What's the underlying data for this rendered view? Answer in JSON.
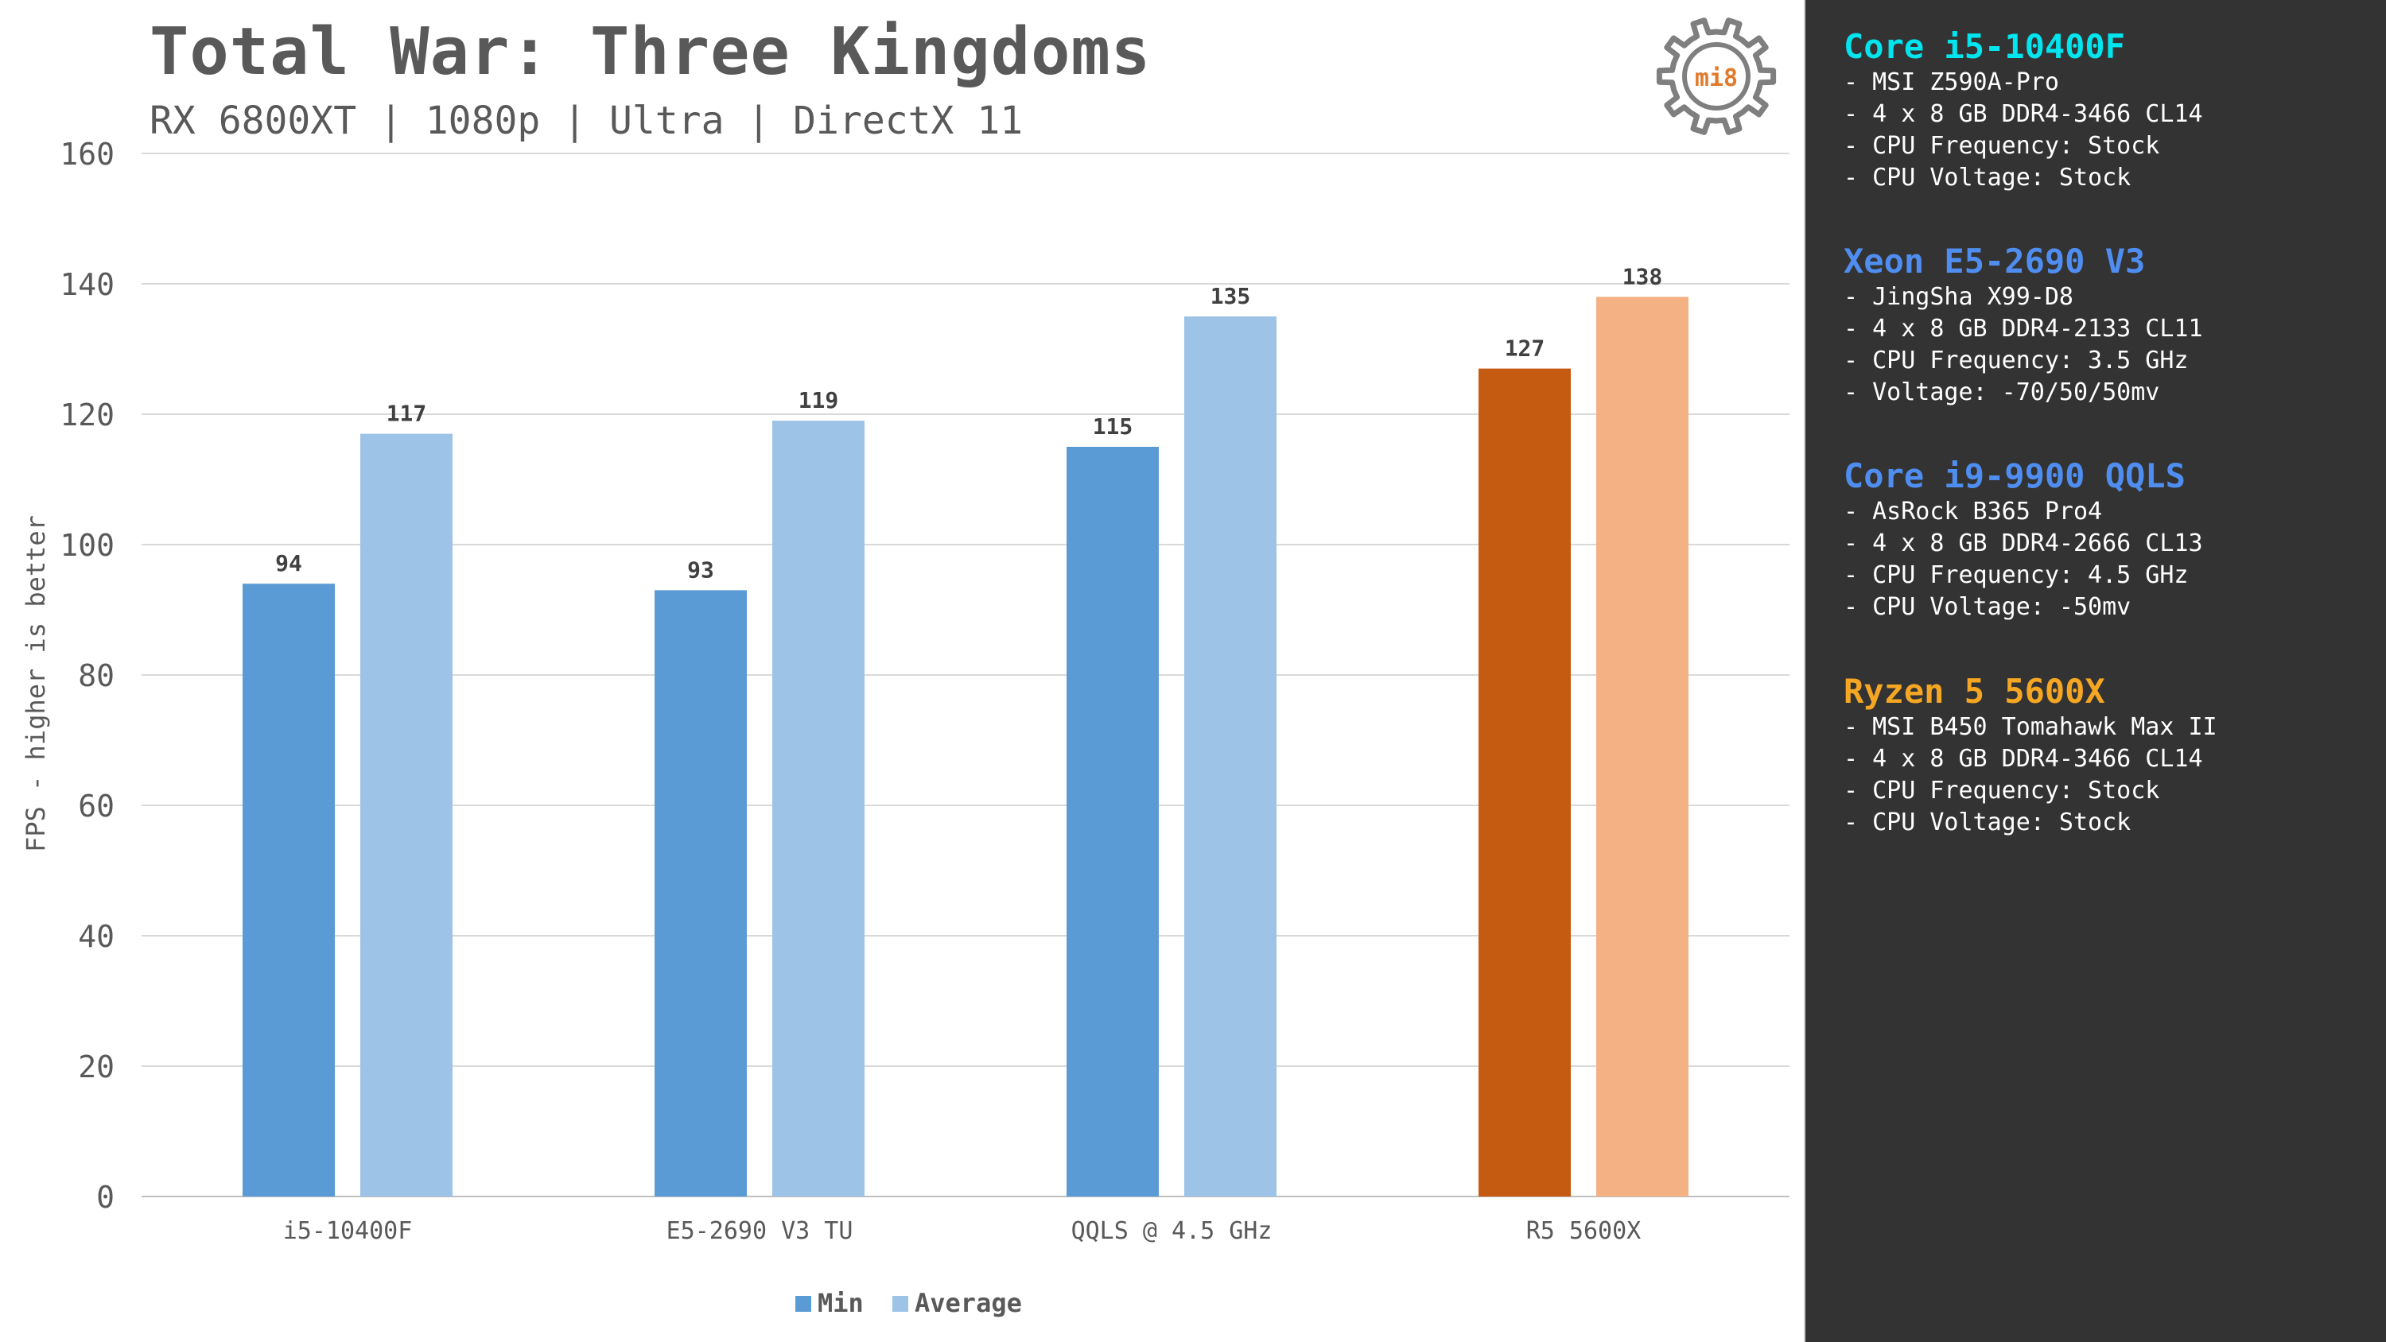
{
  "title": "Total War: Three Kingdoms",
  "subtitle": "RX 6800XT | 1080p | Ultra | DirectX 11",
  "logo_text": "mi8",
  "colors": {
    "min_blue": "#5b9bd5",
    "avg_blue": "#9dc3e6",
    "min_orange": "#c55a11",
    "avg_orange": "#f4b183",
    "grid": "#d9d9d9",
    "text": "#595959",
    "panel_bg": "#333333"
  },
  "chart_data": {
    "type": "bar",
    "title": "Total War: Three Kingdoms",
    "subtitle": "RX 6800XT | 1080p | Ultra | DirectX 11",
    "xlabel": "",
    "ylabel": "FPS - higher is better",
    "ylim": [
      0,
      160
    ],
    "yticks": [
      0,
      20,
      40,
      60,
      80,
      100,
      120,
      140,
      160
    ],
    "categories": [
      "i5-10400F",
      "E5-2690 V3 TU",
      "QQLS @ 4.5 GHz",
      "R5 5600X"
    ],
    "series": [
      {
        "name": "Min",
        "values": [
          94,
          93,
          115,
          127
        ]
      },
      {
        "name": "Average",
        "values": [
          117,
          119,
          135,
          138
        ]
      }
    ],
    "grid": true,
    "legend": "bottom",
    "highlight_category": "R5 5600X"
  },
  "specs": [
    {
      "title": "Core i5-10400F",
      "color": "#00e5ee",
      "lines": [
        "- MSI Z590A-Pro",
        "- 4 x 8 GB DDR4-3466 CL14",
        "- CPU Frequency: Stock",
        "- CPU Voltage: Stock"
      ]
    },
    {
      "title": "Xeon E5-2690 V3",
      "color": "#4f8ef0",
      "lines": [
        "- JingSha X99-D8",
        "- 4 x 8 GB DDR4-2133 CL11",
        "- CPU Frequency: 3.5 GHz",
        "- Voltage: -70/50/50mv"
      ]
    },
    {
      "title": "Core i9-9900 QQLS",
      "color": "#4f8ef0",
      "lines": [
        "- AsRock B365 Pro4",
        "- 4 x 8 GB DDR4-2666 CL13",
        "- CPU Frequency: 4.5 GHz",
        "- CPU Voltage: -50mv"
      ]
    },
    {
      "title": "Ryzen 5 5600X",
      "color": "#f5a623",
      "lines": [
        "- MSI B450 Tomahawk Max II",
        "- 4 x 8 GB DDR4-3466 CL14",
        "- CPU Frequency: Stock",
        "- CPU Voltage: Stock"
      ]
    }
  ]
}
